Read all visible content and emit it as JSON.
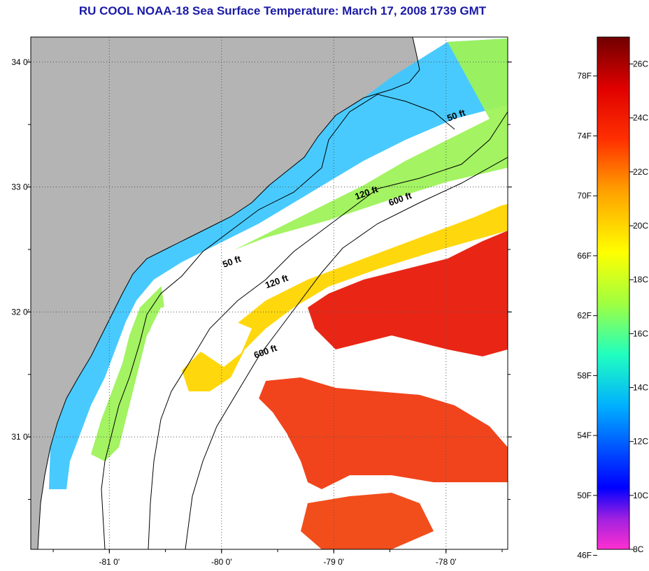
{
  "title": "RU COOL  NOAA-18  Sea Surface Temperature:  March 17, 2008 1739 GMT",
  "map": {
    "lat_range": [
      30.1,
      34.2
    ],
    "lon_range": [
      -81.7,
      -77.45
    ],
    "lat_ticks": [
      {
        "value": 34,
        "label": "34 0'"
      },
      {
        "value": 33,
        "label": "33 0'"
      },
      {
        "value": 32,
        "label": "32 0'"
      },
      {
        "value": 31,
        "label": "31 0'"
      }
    ],
    "lon_ticks": [
      {
        "value": -81,
        "label": "-81 0'"
      },
      {
        "value": -80,
        "label": "-80 0'"
      },
      {
        "value": -79,
        "label": "-79 0'"
      },
      {
        "value": -78,
        "label": "-78 0'"
      }
    ],
    "depth_labels": [
      {
        "text": "50 ft",
        "lon": -77.9,
        "lat": 33.55
      },
      {
        "text": "120 ft",
        "lon": -78.7,
        "lat": 32.93
      },
      {
        "text": "600 ft",
        "lon": -78.4,
        "lat": 32.88
      },
      {
        "text": "50 ft",
        "lon": -79.9,
        "lat": 32.38
      },
      {
        "text": "120 ft",
        "lon": -79.5,
        "lat": 32.22
      },
      {
        "text": "600 ft",
        "lon": -79.6,
        "lat": 31.66
      }
    ],
    "colors": {
      "land": "#b4b4b4",
      "no_data": "#ffffff",
      "coast": "#000000",
      "grid": "#555555"
    }
  },
  "colorbar": {
    "unit_left": "F",
    "unit_right": "C",
    "celsius_range": [
      8,
      27
    ],
    "labels_f": [
      "78F",
      "74F",
      "70F",
      "66F",
      "62F",
      "58F",
      "54F",
      "50F",
      "46F"
    ],
    "labels_c": [
      "26C",
      "24C",
      "22C",
      "20C",
      "18C",
      "16C",
      "14C",
      "12C",
      "10C",
      "8C"
    ],
    "stops": [
      "#ff2fd0",
      "#8a2be2",
      "#0000ff",
      "#0090ff",
      "#00e0ff",
      "#40ff90",
      "#c0ff30",
      "#ffff00",
      "#ffb000",
      "#ff5000",
      "#e00000",
      "#700000"
    ]
  }
}
